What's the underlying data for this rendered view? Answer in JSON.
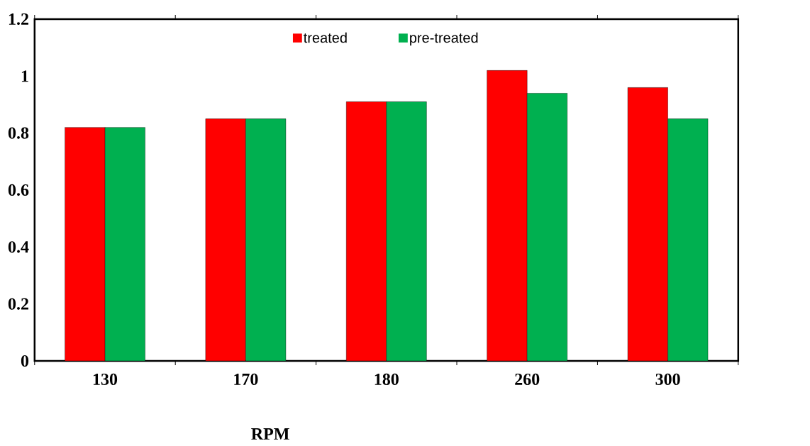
{
  "chart_data": {
    "type": "bar",
    "xlabel": "RPM",
    "categories": [
      "130",
      "170",
      "180",
      "260",
      "300"
    ],
    "series": [
      {
        "name": "treated",
        "color": "#ff0000",
        "values": [
          0.82,
          0.85,
          0.91,
          1.02,
          0.96
        ]
      },
      {
        "name": "pre-treated",
        "color": "#00b050",
        "values": [
          0.82,
          0.85,
          0.91,
          0.94,
          0.85
        ]
      }
    ],
    "ylim": [
      0,
      1.2
    ],
    "yticks": [
      0,
      0.2,
      0.4,
      0.6,
      0.8,
      1,
      1.2
    ],
    "grid": false,
    "legend": "top"
  }
}
